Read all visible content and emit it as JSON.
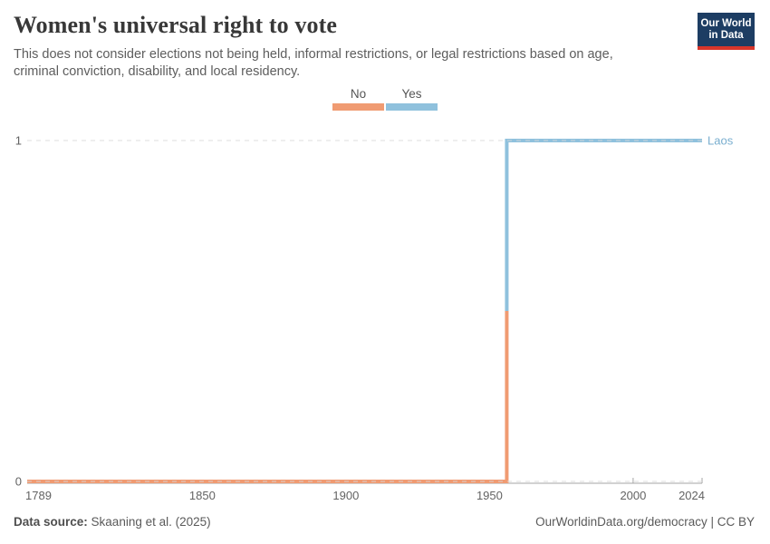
{
  "header": {
    "title": "Women's universal right to vote",
    "subtitle": "This does not consider elections not being held, informal restrictions, or legal restrictions based on age, criminal conviction, disability, and local residency.",
    "logo": {
      "line1": "Our World",
      "line2": "in Data"
    }
  },
  "legend": {
    "items": [
      {
        "label": "No",
        "color": "#f09b72"
      },
      {
        "label": "Yes",
        "color": "#8fc1dd"
      }
    ]
  },
  "chart_data": {
    "type": "line",
    "subtype": "step",
    "title": "Women's universal right to vote",
    "entity": "Laos",
    "xlabel": "",
    "ylabel": "",
    "x_range": [
      1789,
      2024
    ],
    "y_range": [
      0,
      1
    ],
    "x_ticks": [
      1789,
      1850,
      1900,
      1950,
      2000,
      2024
    ],
    "x_ticks_marked": [
      2000,
      2024
    ],
    "y_ticks": [
      0,
      1
    ],
    "step_year": 1956,
    "series": [
      {
        "name": "Laos",
        "segments": [
          {
            "from": 1789,
            "to": 1956,
            "value": 0,
            "label": "No"
          },
          {
            "from": 1956,
            "to": 2024,
            "value": 1,
            "label": "Yes"
          }
        ]
      }
    ],
    "colors": {
      "no": "#f09b72",
      "yes": "#8fc1dd",
      "entity_label": "#79aecf"
    },
    "grid": "dashed-horizontal",
    "legend_position": "top-center"
  },
  "footer": {
    "data_source_label": "Data source:",
    "data_source_value": "Skaaning et al. (2025)",
    "attribution": "OurWorldinData.org/democracy | CC BY"
  }
}
